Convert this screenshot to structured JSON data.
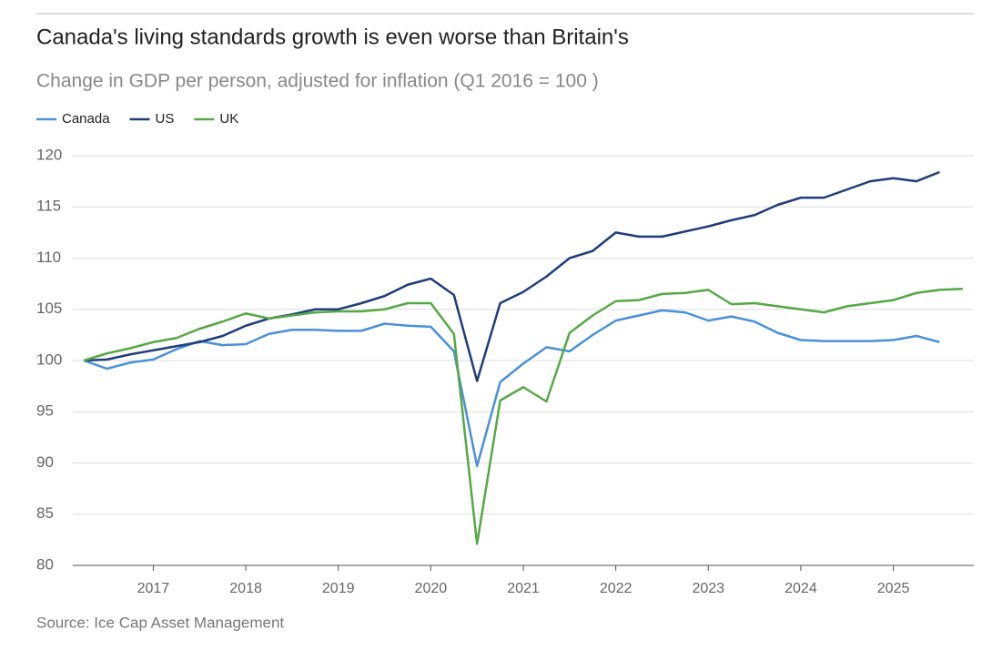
{
  "chart_data": {
    "type": "line",
    "title": "Canada's living standards growth is even worse than Britain's",
    "subtitle": "Change in GDP per person, adjusted for inflation (Q1 2016 = 100 )",
    "source": "Source: Ice Cap Asset Management",
    "x": [
      2016.25,
      2016.5,
      2016.75,
      2017,
      2017.25,
      2017.5,
      2017.75,
      2018,
      2018.25,
      2018.5,
      2018.75,
      2019,
      2019.25,
      2019.5,
      2019.75,
      2020,
      2020.25,
      2020.5,
      2020.75,
      2021,
      2021.25,
      2021.5,
      2021.75,
      2022,
      2022.25,
      2022.5,
      2022.75,
      2023,
      2023.25,
      2023.5,
      2023.75,
      2024,
      2024.25,
      2024.5,
      2024.75,
      2025,
      2025.25,
      2025.5,
      2025.75
    ],
    "series": [
      {
        "name": "Canada",
        "color": "#4a90d9",
        "values": [
          100,
          99.2,
          99.8,
          100.1,
          101.1,
          101.9,
          101.5,
          101.6,
          102.6,
          103.0,
          103.0,
          102.9,
          102.9,
          103.6,
          103.4,
          103.3,
          100.9,
          89.7,
          97.9,
          99.7,
          101.3,
          100.9,
          102.5,
          103.9,
          104.4,
          104.9,
          104.7,
          103.9,
          104.3,
          103.8,
          102.7,
          102.0,
          101.9,
          101.9,
          101.9,
          102.0,
          102.4,
          101.8,
          null
        ]
      },
      {
        "name": "US",
        "color": "#1f3d7a",
        "values": [
          100,
          100.1,
          100.6,
          101.0,
          101.4,
          101.8,
          102.4,
          103.4,
          104.1,
          104.5,
          105.0,
          105.0,
          105.6,
          106.3,
          107.4,
          108.0,
          106.4,
          98.0,
          105.6,
          106.7,
          108.2,
          110.0,
          110.7,
          112.5,
          112.1,
          112.1,
          112.6,
          113.1,
          113.7,
          114.2,
          115.2,
          115.9,
          115.9,
          116.7,
          117.5,
          117.8,
          117.5,
          118.4,
          null
        ]
      },
      {
        "name": "UK",
        "color": "#55a846",
        "values": [
          100,
          100.7,
          101.2,
          101.8,
          102.2,
          103.1,
          103.8,
          104.6,
          104.1,
          104.4,
          104.7,
          104.8,
          104.8,
          105.0,
          105.6,
          105.6,
          102.6,
          82.1,
          96.1,
          97.4,
          96.0,
          102.7,
          104.4,
          105.8,
          105.9,
          106.5,
          106.6,
          106.9,
          105.5,
          105.6,
          105.3,
          105.0,
          104.7,
          105.3,
          105.6,
          105.9,
          106.6,
          106.9,
          107.0
        ]
      }
    ],
    "xlim": [
      2016.13,
      2025.87
    ],
    "xticks": [
      2017,
      2018,
      2019,
      2020,
      2021,
      2022,
      2023,
      2024,
      2025
    ],
    "ylim": [
      80,
      120
    ],
    "yticks": [
      80,
      85,
      90,
      95,
      100,
      105,
      110,
      115,
      120
    ],
    "grid": true,
    "legend": "top-left"
  }
}
